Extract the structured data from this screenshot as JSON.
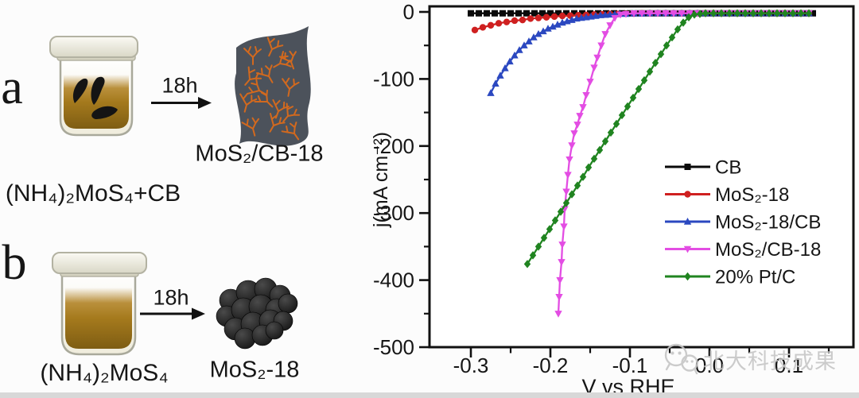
{
  "page": {
    "background": "#fcfcfc",
    "footer_bar_color": "#d8d8d8"
  },
  "watermark": {
    "text": "北大科技成果",
    "logo": "wechat-icon",
    "color": "#c6c6c6"
  },
  "diagram": {
    "colors": {
      "jar_lid": "#f3f2e8",
      "jar_body": "#f7f5ec",
      "jar_outline": "#a9a99b",
      "liquid_top": "#b28427",
      "liquid_bottom": "#7e5d13",
      "flake": "#141414",
      "sheet": "#4c525b",
      "branch": "#d2691e",
      "sphere": "#171717"
    },
    "panel_a": {
      "label": "a",
      "reaction_time": "18h",
      "product": "MoS₂/CB-18",
      "reactant": "(NH₄)₂MoS₄+CB"
    },
    "panel_b": {
      "label": "b",
      "reaction_time": "18h",
      "product": "MoS₂-18",
      "reactant": "(NH₄)₂MoS₄"
    }
  },
  "chart_data": {
    "type": "line",
    "title": "",
    "xlabel": "V vs RHE",
    "ylabel": "j(mA cm⁻²)",
    "xlim": [
      -0.352,
      0.181
    ],
    "ylim": [
      -500,
      8
    ],
    "grid": false,
    "legend_position": "inside-right-middle",
    "x_major_ticks": [
      -0.3,
      -0.2,
      -0.1,
      0.0,
      0.1
    ],
    "x_tick_labels": [
      "-0.3",
      "-0.2",
      "-0.1",
      "0.0",
      "0.1"
    ],
    "x_minor_ticks": [
      -0.25,
      -0.15,
      -0.05,
      0.05,
      0.15
    ],
    "y_major_ticks": [
      0,
      -100,
      -200,
      -300,
      -400,
      -500
    ],
    "y_tick_labels": [
      "0",
      "-100",
      "-200",
      "-300",
      "-400",
      "-500"
    ],
    "y_minor_ticks": [
      -50,
      -150,
      -250,
      -350,
      -450
    ],
    "series": [
      {
        "id": "cb",
        "name": "CB",
        "color": "#0a0a0a",
        "marker": "square",
        "points": [
          [
            -0.3,
            -2
          ],
          [
            -0.29,
            -2
          ],
          [
            -0.28,
            -2
          ],
          [
            -0.27,
            -2
          ],
          [
            -0.26,
            -2
          ],
          [
            -0.25,
            -2
          ],
          [
            -0.24,
            -2
          ],
          [
            -0.23,
            -2
          ],
          [
            -0.22,
            -2
          ],
          [
            -0.21,
            -2
          ],
          [
            -0.2,
            -2
          ],
          [
            -0.19,
            -2
          ],
          [
            -0.18,
            -2
          ],
          [
            -0.17,
            -2
          ],
          [
            -0.16,
            -2
          ],
          [
            -0.15,
            -2
          ],
          [
            -0.14,
            -2
          ],
          [
            -0.13,
            -2
          ],
          [
            -0.12,
            -2
          ],
          [
            -0.11,
            -2
          ],
          [
            -0.1,
            -2
          ],
          [
            -0.09,
            -2
          ],
          [
            -0.08,
            -2
          ],
          [
            -0.07,
            -2
          ],
          [
            -0.06,
            -2
          ],
          [
            -0.05,
            -2
          ],
          [
            -0.04,
            -2
          ],
          [
            -0.03,
            -2
          ],
          [
            -0.02,
            -2
          ],
          [
            -0.01,
            -2
          ],
          [
            0.0,
            -2
          ],
          [
            0.01,
            -2
          ],
          [
            0.02,
            -2
          ],
          [
            0.03,
            -2
          ],
          [
            0.04,
            -2
          ],
          [
            0.05,
            -2
          ],
          [
            0.06,
            -2
          ],
          [
            0.07,
            -2
          ],
          [
            0.08,
            -2
          ],
          [
            0.09,
            -2
          ],
          [
            0.1,
            -2
          ],
          [
            0.11,
            -2
          ],
          [
            0.12,
            -2
          ],
          [
            0.13,
            -2
          ]
        ]
      },
      {
        "id": "mos2-18",
        "name": "MoS₂-18",
        "color": "#cf2020",
        "marker": "circle",
        "points": [
          [
            -0.295,
            -27
          ],
          [
            -0.285,
            -23
          ],
          [
            -0.275,
            -20
          ],
          [
            -0.265,
            -17
          ],
          [
            -0.255,
            -15
          ],
          [
            -0.245,
            -13
          ],
          [
            -0.235,
            -12
          ],
          [
            -0.225,
            -10
          ],
          [
            -0.215,
            -9
          ],
          [
            -0.205,
            -8
          ],
          [
            -0.195,
            -7
          ],
          [
            -0.185,
            -6
          ],
          [
            -0.175,
            -5.5
          ],
          [
            -0.165,
            -5
          ],
          [
            -0.155,
            -4.5
          ],
          [
            -0.145,
            -4
          ],
          [
            -0.135,
            -3.5
          ],
          [
            -0.125,
            -3
          ],
          [
            -0.115,
            -3
          ],
          [
            -0.105,
            -2.5
          ],
          [
            -0.095,
            -2.5
          ],
          [
            -0.085,
            -2
          ],
          [
            -0.075,
            -2
          ],
          [
            -0.065,
            -2
          ],
          [
            -0.055,
            -2
          ],
          [
            -0.045,
            -2
          ],
          [
            -0.035,
            -2
          ],
          [
            -0.025,
            -2
          ],
          [
            -0.015,
            -2
          ],
          [
            -0.005,
            -2
          ],
          [
            0.005,
            -2
          ],
          [
            0.015,
            -2
          ],
          [
            0.025,
            -2
          ],
          [
            0.035,
            -2
          ],
          [
            0.045,
            -2
          ],
          [
            0.055,
            -2
          ],
          [
            0.065,
            -2
          ],
          [
            0.075,
            -2
          ],
          [
            0.085,
            -2
          ],
          [
            0.095,
            -2
          ],
          [
            0.105,
            -2
          ],
          [
            0.115,
            -2
          ],
          [
            0.125,
            -2
          ]
        ]
      },
      {
        "id": "mos2-18-cb",
        "name": "MoS₂-18/CB",
        "color": "#2b48c0",
        "marker": "triangle-up",
        "points": [
          [
            -0.275,
            -121
          ],
          [
            -0.269,
            -107
          ],
          [
            -0.263,
            -95
          ],
          [
            -0.257,
            -84
          ],
          [
            -0.251,
            -74
          ],
          [
            -0.245,
            -65
          ],
          [
            -0.239,
            -57
          ],
          [
            -0.233,
            -50
          ],
          [
            -0.227,
            -44
          ],
          [
            -0.221,
            -38
          ],
          [
            -0.215,
            -33
          ],
          [
            -0.209,
            -29
          ],
          [
            -0.203,
            -25
          ],
          [
            -0.197,
            -22
          ],
          [
            -0.191,
            -19
          ],
          [
            -0.185,
            -16
          ],
          [
            -0.179,
            -14
          ],
          [
            -0.173,
            -12
          ],
          [
            -0.167,
            -10
          ],
          [
            -0.161,
            -9
          ],
          [
            -0.155,
            -8
          ],
          [
            -0.149,
            -7
          ],
          [
            -0.143,
            -6
          ],
          [
            -0.137,
            -5
          ],
          [
            -0.131,
            -4.5
          ],
          [
            -0.125,
            -4
          ],
          [
            -0.119,
            -3.5
          ],
          [
            -0.113,
            -3
          ],
          [
            -0.105,
            -3
          ],
          [
            -0.095,
            -2.5
          ],
          [
            -0.085,
            -2.5
          ],
          [
            -0.075,
            -2
          ],
          [
            -0.065,
            -2
          ],
          [
            -0.055,
            -2
          ],
          [
            -0.045,
            -2
          ],
          [
            -0.035,
            -2
          ],
          [
            -0.025,
            -2
          ],
          [
            -0.015,
            -2
          ],
          [
            -0.005,
            -2
          ],
          [
            0.005,
            -2
          ],
          [
            0.015,
            -2
          ],
          [
            0.025,
            -2
          ],
          [
            0.035,
            -2
          ],
          [
            0.045,
            -2
          ],
          [
            0.055,
            -2
          ],
          [
            0.065,
            -2
          ],
          [
            0.075,
            -2
          ],
          [
            0.085,
            -2
          ],
          [
            0.095,
            -2
          ],
          [
            0.105,
            -2
          ],
          [
            0.115,
            -2
          ],
          [
            0.125,
            -2
          ]
        ]
      },
      {
        "id": "mos2-cb-18",
        "name": "MoS₂/CB-18",
        "color": "#e34de3",
        "marker": "triangle-down",
        "points": [
          [
            -0.19,
            -450
          ],
          [
            -0.189,
            -425
          ],
          [
            -0.188,
            -400
          ],
          [
            -0.186,
            -373
          ],
          [
            -0.185,
            -347
          ],
          [
            -0.183,
            -320
          ],
          [
            -0.182,
            -294
          ],
          [
            -0.18,
            -268
          ],
          [
            -0.178,
            -243
          ],
          [
            -0.176,
            -220
          ],
          [
            -0.173,
            -199
          ],
          [
            -0.17,
            -181
          ],
          [
            -0.166,
            -168
          ],
          [
            -0.163,
            -155
          ],
          [
            -0.159,
            -142
          ],
          [
            -0.155,
            -124
          ],
          [
            -0.15,
            -104
          ],
          [
            -0.145,
            -83
          ],
          [
            -0.141,
            -68
          ],
          [
            -0.136,
            -50
          ],
          [
            -0.131,
            -33
          ],
          [
            -0.125,
            -20
          ],
          [
            -0.119,
            -9
          ],
          [
            -0.112,
            -4
          ],
          [
            -0.105,
            -3
          ],
          [
            -0.095,
            -2
          ],
          [
            -0.085,
            -2
          ],
          [
            -0.075,
            -2
          ],
          [
            -0.065,
            -2
          ],
          [
            -0.055,
            -2
          ],
          [
            -0.045,
            -2
          ],
          [
            -0.035,
            -2
          ],
          [
            -0.025,
            -2
          ],
          [
            -0.015,
            -2
          ],
          [
            -0.005,
            -2
          ],
          [
            0.005,
            -2
          ],
          [
            0.015,
            -2
          ],
          [
            0.025,
            -2
          ],
          [
            0.035,
            -2
          ],
          [
            0.045,
            -2
          ],
          [
            0.055,
            -2
          ],
          [
            0.065,
            -2
          ],
          [
            0.075,
            -2
          ],
          [
            0.085,
            -2
          ],
          [
            0.095,
            -2
          ],
          [
            0.105,
            -2
          ],
          [
            0.115,
            -2
          ],
          [
            0.125,
            -2
          ]
        ]
      },
      {
        "id": "pt-c",
        "name": "20% Pt/C",
        "color": "#208420",
        "marker": "diamond",
        "points": [
          [
            -0.229,
            -376
          ],
          [
            -0.222,
            -363
          ],
          [
            -0.215,
            -350
          ],
          [
            -0.208,
            -337
          ],
          [
            -0.201,
            -324
          ],
          [
            -0.194,
            -311
          ],
          [
            -0.187,
            -298
          ],
          [
            -0.18,
            -285
          ],
          [
            -0.173,
            -272
          ],
          [
            -0.166,
            -259
          ],
          [
            -0.159,
            -246
          ],
          [
            -0.152,
            -232
          ],
          [
            -0.145,
            -219
          ],
          [
            -0.138,
            -206
          ],
          [
            -0.131,
            -193
          ],
          [
            -0.124,
            -180
          ],
          [
            -0.117,
            -167
          ],
          [
            -0.11,
            -154
          ],
          [
            -0.103,
            -141
          ],
          [
            -0.096,
            -128
          ],
          [
            -0.089,
            -115
          ],
          [
            -0.082,
            -102
          ],
          [
            -0.075,
            -89
          ],
          [
            -0.068,
            -76
          ],
          [
            -0.061,
            -63
          ],
          [
            -0.054,
            -50
          ],
          [
            -0.047,
            -38
          ],
          [
            -0.04,
            -26
          ],
          [
            -0.033,
            -16
          ],
          [
            -0.026,
            -8
          ],
          [
            -0.019,
            -4
          ],
          [
            -0.012,
            -3
          ],
          [
            -0.005,
            -2
          ],
          [
            0.005,
            -2
          ],
          [
            0.015,
            -2
          ],
          [
            0.025,
            -2
          ],
          [
            0.035,
            -2
          ],
          [
            0.045,
            -2
          ],
          [
            0.055,
            -2
          ],
          [
            0.065,
            -2
          ],
          [
            0.075,
            -2
          ],
          [
            0.085,
            -2
          ],
          [
            0.095,
            -2
          ],
          [
            0.105,
            -2
          ],
          [
            0.115,
            -2
          ],
          [
            0.125,
            -2
          ]
        ]
      }
    ]
  }
}
